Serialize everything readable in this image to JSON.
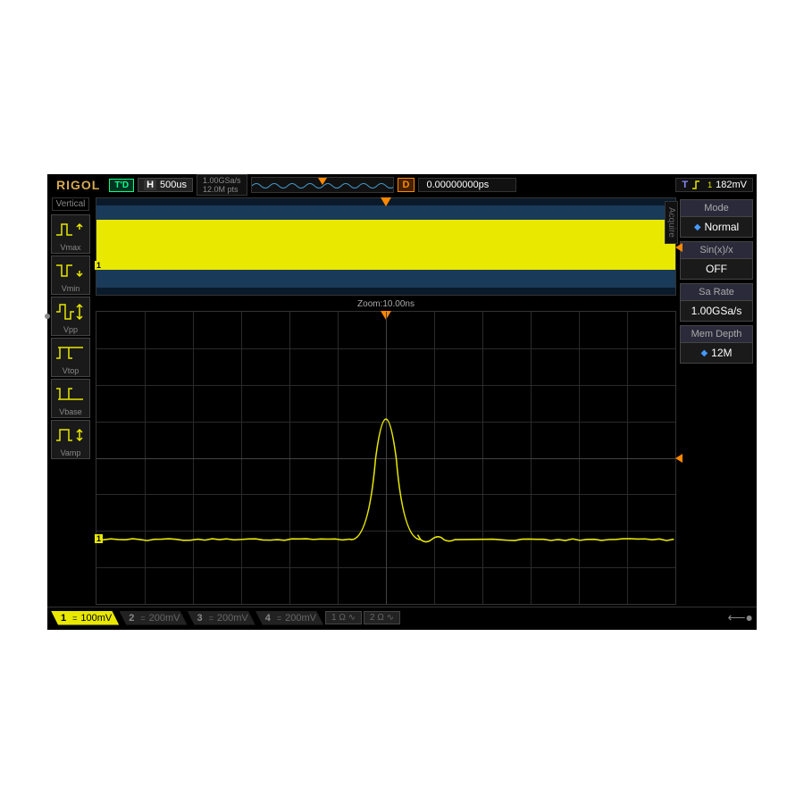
{
  "brand": "RIGOL",
  "topbar": {
    "td": "T'D",
    "h": "H",
    "timebase": "500us",
    "sample_rate": "1.00GSa/s",
    "mem_pts": "12.0M pts",
    "d": "D",
    "delay": "0.00000000ps",
    "trig_t": "T",
    "trig_level": "182mV"
  },
  "leftbar": {
    "title": "Vertical",
    "items": [
      "Vmax",
      "Vmin",
      "Vpp",
      "Vtop",
      "Vbase",
      "Vamp"
    ]
  },
  "overview": {
    "ch_label": "1",
    "colors": {
      "bg_band": "#1a3a5a",
      "trace": "#e8e800",
      "panel_bg": "#0a1a2a"
    }
  },
  "zoom_label": "Zoom:10.00ns",
  "waveform": {
    "type": "line",
    "color": "#e8e800",
    "baseline_y": 0.78,
    "peak_x": 0.5,
    "peak_y": 0.23,
    "peak_width": 0.06,
    "xlim": [
      0,
      1
    ],
    "ylim": [
      0,
      1
    ],
    "grid_divs_x": 12,
    "grid_divs_y": 8,
    "grid_color": "#2a2a2a",
    "center_grid_color": "#444444",
    "bg_color": "#000000",
    "ripple": [
      {
        "x": 0.56,
        "amp": 0.03
      },
      {
        "x": 0.6,
        "amp": 0.02
      }
    ]
  },
  "trig_marker": {
    "top_color": "#ff8800",
    "level_y": 0.5
  },
  "rightbar": {
    "acquire": "Acquire",
    "groups": [
      {
        "header": "Mode",
        "value": "Normal",
        "arrow": true
      },
      {
        "header": "Sin(x)/x",
        "value": "OFF",
        "arrow": false
      },
      {
        "header": "Sa Rate",
        "value": "1.00GSa/s",
        "arrow": false
      },
      {
        "header": "Mem Depth",
        "value": "12M",
        "arrow": true
      }
    ]
  },
  "bottombar": {
    "channels": [
      {
        "n": "1",
        "scale": "100mV",
        "active": true,
        "coupling": "="
      },
      {
        "n": "2",
        "scale": "200mV",
        "active": false,
        "coupling": "="
      },
      {
        "n": "3",
        "scale": "200mV",
        "active": false,
        "coupling": "="
      },
      {
        "n": "4",
        "scale": "200mV",
        "active": false,
        "coupling": "="
      }
    ],
    "ohm1": "1 Ω ∿",
    "ohm2": "2 Ω ∿"
  },
  "colors": {
    "brand": "#d4a853",
    "ch1": "#e8e800",
    "ch2": "#00dddd",
    "ch3": "#dd00dd",
    "ch4": "#4488ff",
    "trig": "#ff8800",
    "menu_header_bg": "#2a2a3a",
    "menu_value_bg": "#1a1a1a"
  }
}
